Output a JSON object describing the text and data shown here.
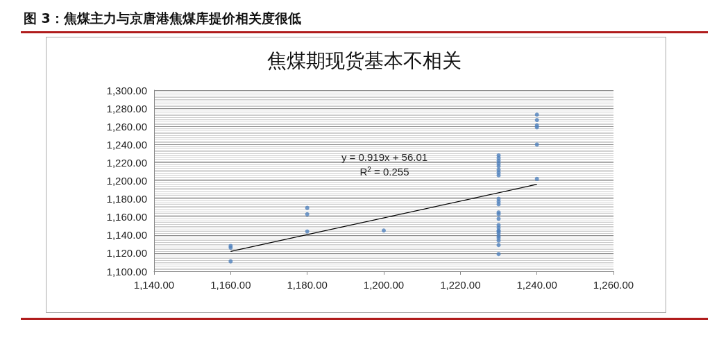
{
  "chart_data": {
    "type": "scatter",
    "title": "图 3：焦煤主力与京唐港焦煤库提价相关度很低",
    "subtitle": "焦煤期现货基本不相关",
    "xlim": [
      1140,
      1260
    ],
    "xticks": [
      {
        "value": 1140,
        "label": "1,140.00"
      },
      {
        "value": 1160,
        "label": "1,160.00"
      },
      {
        "value": 1180,
        "label": "1,180.00"
      },
      {
        "value": 1200,
        "label": "1,200.00"
      },
      {
        "value": 1220,
        "label": "1,220.00"
      },
      {
        "value": 1240,
        "label": "1,240.00"
      },
      {
        "value": 1260,
        "label": "1,260.00"
      }
    ],
    "ylim": [
      1100,
      1300
    ],
    "yticks": [
      {
        "value": 1100,
        "label": "1,100.00"
      },
      {
        "value": 1120,
        "label": "1,120.00"
      },
      {
        "value": 1140,
        "label": "1,140.00"
      },
      {
        "value": 1160,
        "label": "1,160.00"
      },
      {
        "value": 1180,
        "label": "1,180.00"
      },
      {
        "value": 1200,
        "label": "1,200.00"
      },
      {
        "value": 1220,
        "label": "1,220.00"
      },
      {
        "value": 1240,
        "label": "1,240.00"
      },
      {
        "value": 1260,
        "label": "1,260.00"
      },
      {
        "value": 1280,
        "label": "1,280.00"
      },
      {
        "value": 1300,
        "label": "1,300.00"
      }
    ],
    "grid": "y",
    "marker": "circle",
    "series": [
      {
        "color": "#4f81bd",
        "x": [
          1160,
          1160,
          1160,
          1180,
          1180,
          1180,
          1200,
          1230,
          1230,
          1230,
          1230,
          1230,
          1230,
          1230,
          1230,
          1230,
          1230,
          1230,
          1230,
          1230,
          1230,
          1230,
          1230,
          1230,
          1230,
          1230,
          1230,
          1230,
          1230,
          1230,
          1230,
          1240,
          1240,
          1240,
          1240,
          1240,
          1240
        ],
        "values": [
          1128,
          1126,
          1111,
          1170,
          1163,
          1144,
          1145,
          1228,
          1225,
          1222,
          1219,
          1216,
          1212,
          1209,
          1206,
          1180,
          1177,
          1174,
          1165,
          1163,
          1158,
          1151,
          1148,
          1145,
          1144,
          1142,
          1139,
          1137,
          1134,
          1129,
          1119,
          1273,
          1267,
          1261,
          1259,
          1240,
          1202
        ]
      },
      {
        "type": "line",
        "color": "#000000",
        "marker": "none",
        "x": [
          1160,
          1240
        ],
        "values": [
          1122,
          1196
        ]
      }
    ],
    "annotations": [
      "y = 0.919x + 56.01",
      "R$^{2}$ = 0.255"
    ]
  }
}
